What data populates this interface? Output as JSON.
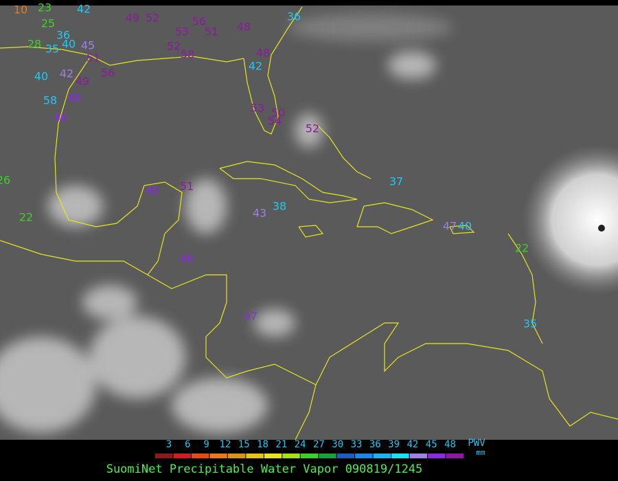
{
  "title": "SuomiNet Precipitable Water Vapor 090819/1245",
  "legend": {
    "unit_top": "PWV",
    "unit_bottom": "mm",
    "ticks": [
      3,
      6,
      9,
      12,
      15,
      18,
      21,
      24,
      27,
      30,
      33,
      36,
      39,
      42,
      45,
      48
    ],
    "colors": [
      "#8b1a1a",
      "#cc1f1f",
      "#e64a19",
      "#e8781e",
      "#d9931c",
      "#e6c21c",
      "#e6e61c",
      "#a6e01c",
      "#3fcf2a",
      "#1c9e3a",
      "#1c5fbf",
      "#1c86e6",
      "#1cb4f0",
      "#1ce0f0",
      "#9f7fe6",
      "#8a2be2",
      "#8b1a9e"
    ]
  },
  "stations": [
    {
      "value": 36,
      "color": "#22c8f0"
    },
    {
      "value": 48,
      "color": "#8b1a9e"
    },
    {
      "value": 49,
      "color": "#8b1a9e"
    },
    {
      "value": 52,
      "color": "#8b1a9e"
    },
    {
      "value": 53,
      "color": "#8b1a9e"
    },
    {
      "value": 56,
      "color": "#8b1a9e"
    },
    {
      "value": 51,
      "color": "#8b1a9e"
    },
    {
      "value": 52,
      "color": "#8b1a9e"
    },
    {
      "value": 58,
      "color": "#8b1a9e"
    },
    {
      "value": 49,
      "color": "#8b1a9e"
    },
    {
      "value": 42,
      "color": "#9f7fe6"
    },
    {
      "value": 40,
      "color": "#22c8f0"
    },
    {
      "value": 36,
      "color": "#22c8f0"
    },
    {
      "value": 35,
      "color": "#22c8f0"
    },
    {
      "value": 40,
      "color": "#22c8f0"
    },
    {
      "value": 45,
      "color": "#9f7fe6"
    },
    {
      "value": 51,
      "color": "#8b1a9e"
    },
    {
      "value": 56,
      "color": "#8b1a9e"
    },
    {
      "value": 58,
      "color": "#22c8f0"
    },
    {
      "value": 48,
      "color": "#8a2be2"
    },
    {
      "value": 46,
      "color": "#8a2be2"
    },
    {
      "value": 28,
      "color": "#3fcf2a"
    },
    {
      "value": 25,
      "color": "#3fcf2a"
    },
    {
      "value": 26,
      "color": "#3fcf2a"
    },
    {
      "value": 22,
      "color": "#3fcf2a"
    },
    {
      "value": 48,
      "color": "#8b1a9e"
    },
    {
      "value": 42,
      "color": "#22c8f0"
    },
    {
      "value": 50,
      "color": "#8b1a9e"
    },
    {
      "value": 53,
      "color": "#8b1a9e"
    },
    {
      "value": 54,
      "color": "#8b1a9e"
    },
    {
      "value": 52,
      "color": "#8b1a9e"
    },
    {
      "value": 37,
      "color": "#22c8f0"
    },
    {
      "value": 46,
      "color": "#8a2be2"
    },
    {
      "value": 51,
      "color": "#8b1a9e"
    },
    {
      "value": 43,
      "color": "#9f7fe6"
    },
    {
      "value": 38,
      "color": "#22c8f0"
    },
    {
      "value": 47,
      "color": "#9f7fe6"
    },
    {
      "value": 40,
      "color": "#22c8f0"
    },
    {
      "value": 22,
      "color": "#3fcf2a"
    },
    {
      "value": 35,
      "color": "#22c8f0"
    },
    {
      "value": 46,
      "color": "#8a2be2"
    },
    {
      "value": 47,
      "color": "#8a2be2"
    },
    {
      "value": 10,
      "color": "#e8781e"
    },
    {
      "value": 23,
      "color": "#3fcf2a"
    },
    {
      "value": 42,
      "color": "#22c8f0"
    }
  ]
}
